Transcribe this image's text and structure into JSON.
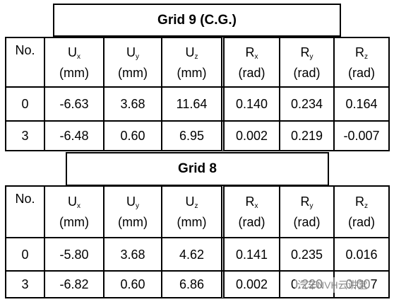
{
  "tables": [
    {
      "title": "Grid 9 (C.G.)",
      "columns": [
        {
          "label": "No."
        },
        {
          "symbol": "U",
          "sub": "x",
          "unit": "(mm)"
        },
        {
          "symbol": "U",
          "sub": "y",
          "unit": "(mm)"
        },
        {
          "symbol": "U",
          "sub": "z",
          "unit": "(mm)"
        },
        {
          "symbol": "R",
          "sub": "x",
          "unit": "(rad)"
        },
        {
          "symbol": "R",
          "sub": "y",
          "unit": "(rad)"
        },
        {
          "symbol": "R",
          "sub": "z",
          "unit": "(rad)"
        }
      ],
      "rows": [
        [
          "0",
          "-6.63",
          "3.68",
          "11.64",
          "0.140",
          "0.234",
          "0.164"
        ],
        [
          "3",
          "-6.48",
          "0.60",
          "6.95",
          "0.002",
          "0.219",
          "-0.007"
        ]
      ]
    },
    {
      "title": "Grid 8",
      "columns": [
        {
          "label": "No."
        },
        {
          "symbol": "U",
          "sub": "x",
          "unit": "(mm)"
        },
        {
          "symbol": "U",
          "sub": "y",
          "unit": "(mm)"
        },
        {
          "symbol": "U",
          "sub": "z",
          "unit": "(mm)"
        },
        {
          "symbol": "R",
          "sub": "x",
          "unit": "(rad)"
        },
        {
          "symbol": "R",
          "sub": "y",
          "unit": "(rad)"
        },
        {
          "symbol": "R",
          "sub": "z",
          "unit": "(rad)"
        }
      ],
      "rows": [
        [
          "0",
          "-5.80",
          "3.68",
          "4.62",
          "0.141",
          "0.235",
          "0.016"
        ],
        [
          "3",
          "-6.82",
          "0.60",
          "6.86",
          "0.002",
          "0.220",
          "0.007"
        ]
      ]
    }
  ],
  "watermark": "汽车NVH云讲堂"
}
